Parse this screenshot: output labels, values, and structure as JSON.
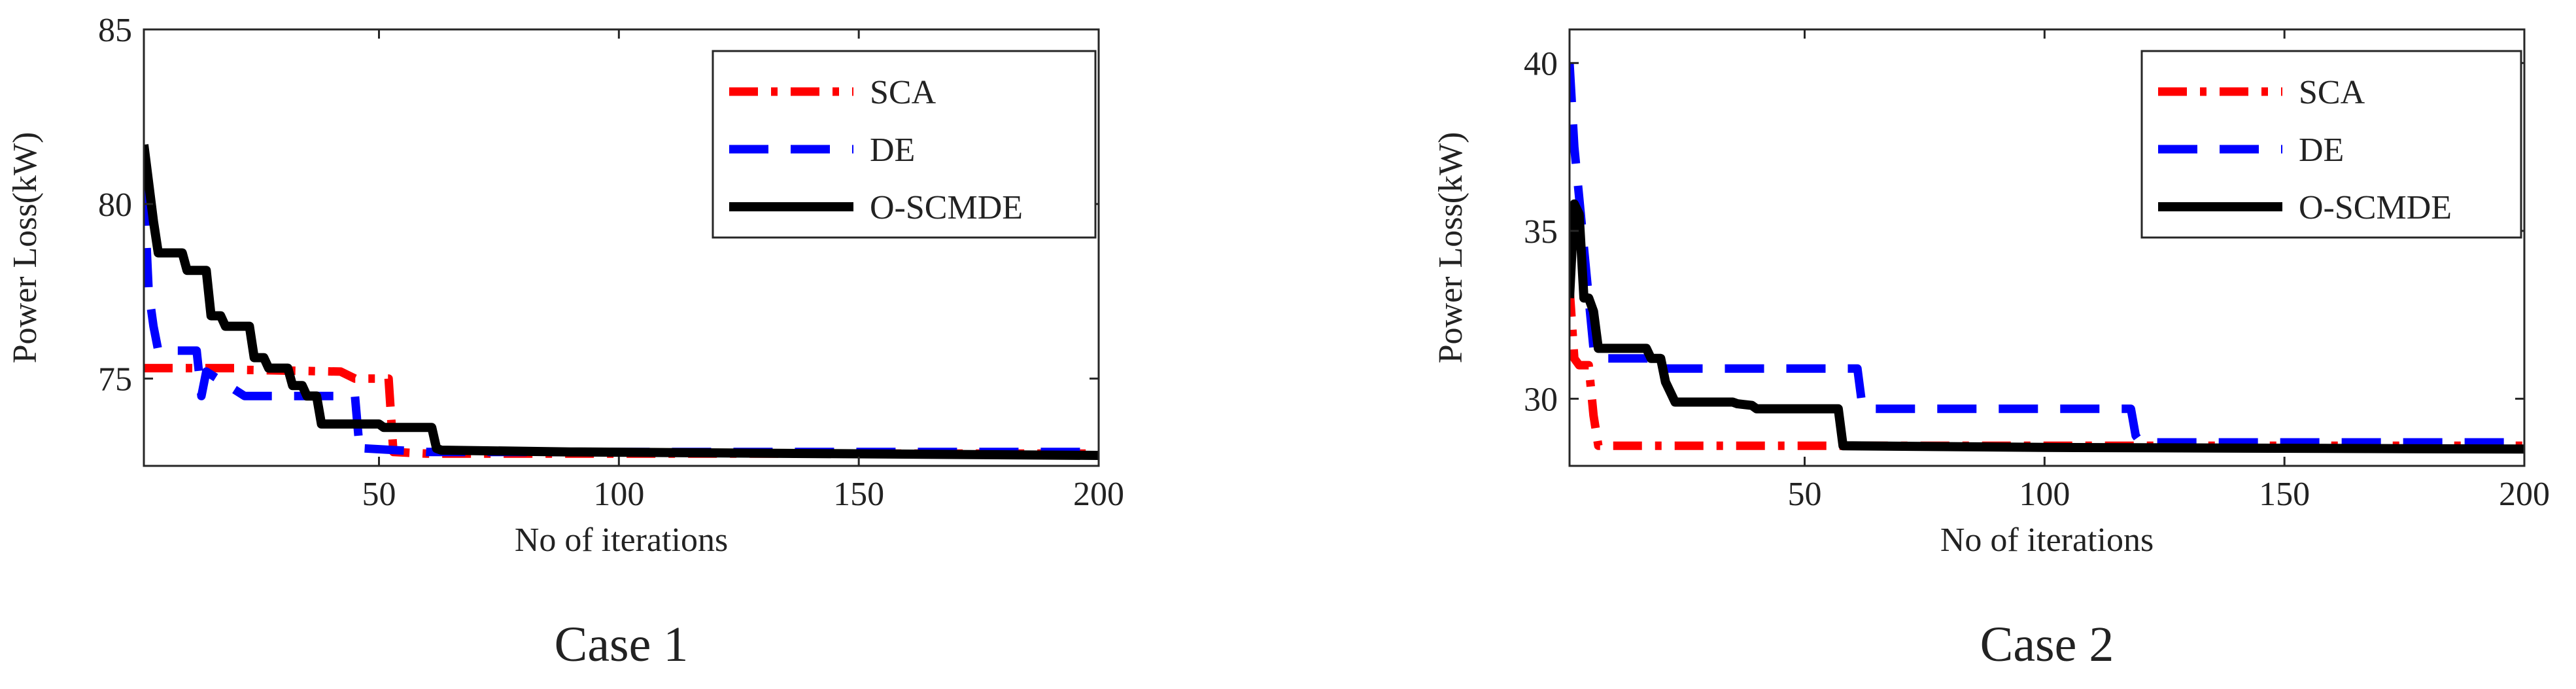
{
  "chart_data": [
    {
      "type": "line",
      "caption": "Case 1",
      "xlabel": "No of iterations",
      "ylabel": "Power Loss(kW)",
      "xlim": [
        1,
        200
      ],
      "ylim": [
        72.5,
        85
      ],
      "xticks": [
        50,
        100,
        150,
        200
      ],
      "yticks": [
        75,
        80,
        85
      ],
      "grid": false,
      "legend_position": "top-right",
      "series": [
        {
          "name": "SCA",
          "color": "#ff0000",
          "style": "dash-dot",
          "x": [
            1,
            20,
            22,
            42,
            45,
            52,
            53,
            60,
            200
          ],
          "y": [
            75.3,
            75.3,
            75.25,
            75.2,
            75.0,
            75.0,
            72.9,
            72.85,
            72.85
          ]
        },
        {
          "name": "DE",
          "color": "#0000ff",
          "style": "dashed",
          "x": [
            1,
            2,
            3,
            4,
            12,
            13,
            14,
            22,
            24,
            45,
            46,
            47,
            60,
            200
          ],
          "y": [
            80.5,
            77.5,
            76.5,
            75.8,
            75.8,
            74.5,
            75.2,
            74.5,
            74.5,
            74.5,
            72.9,
            73.0,
            72.9,
            72.9
          ]
        },
        {
          "name": "O-SCMDE",
          "color": "#000000",
          "style": "solid",
          "x": [
            1,
            3,
            4,
            9,
            10,
            14,
            15,
            17,
            18,
            23,
            24,
            26,
            27,
            31,
            32,
            34,
            35,
            37,
            38,
            50,
            51,
            61,
            62,
            63,
            90,
            200
          ],
          "y": [
            81.7,
            79.5,
            78.6,
            78.6,
            78.1,
            78.1,
            76.8,
            76.8,
            76.5,
            76.5,
            75.6,
            75.6,
            75.3,
            75.3,
            74.8,
            74.8,
            74.5,
            74.5,
            73.7,
            73.7,
            73.6,
            73.6,
            73.0,
            72.95,
            72.9,
            72.8
          ]
        }
      ]
    },
    {
      "type": "line",
      "caption": "Case 2",
      "xlabel": "No of iterations",
      "ylabel": "Power Loss(kW)",
      "xlim": [
        1,
        200
      ],
      "ylim": [
        28,
        41
      ],
      "xticks": [
        50,
        100,
        150,
        200
      ],
      "yticks": [
        30,
        35,
        40
      ],
      "grid": false,
      "legend_position": "top-right",
      "series": [
        {
          "name": "SCA",
          "color": "#ff0000",
          "style": "dash-dot",
          "x": [
            1,
            2,
            3,
            4,
            5,
            6,
            7,
            200
          ],
          "y": [
            33.3,
            31.2,
            31.0,
            31.0,
            31.0,
            29.5,
            28.6,
            28.6
          ]
        },
        {
          "name": "DE",
          "color": "#0000ff",
          "style": "dashed",
          "x": [
            1,
            2,
            3,
            4,
            5,
            6,
            8,
            9,
            20,
            21,
            61,
            62,
            63,
            118,
            119,
            120,
            121,
            200
          ],
          "y": [
            40.0,
            37.5,
            36.0,
            34.5,
            33.0,
            31.5,
            31.5,
            31.2,
            31.2,
            30.9,
            30.9,
            29.8,
            29.7,
            29.7,
            28.9,
            28.7,
            28.7,
            28.7
          ]
        },
        {
          "name": "O-SCMDE",
          "color": "#000000",
          "style": "solid",
          "x": [
            1,
            2,
            3,
            4,
            5,
            6,
            7,
            17,
            18,
            20,
            21,
            22,
            23,
            35,
            36,
            39,
            40,
            57,
            58,
            100,
            200
          ],
          "y": [
            33.0,
            35.8,
            35.5,
            33.0,
            33.0,
            32.6,
            31.5,
            31.5,
            31.2,
            31.2,
            30.5,
            30.2,
            29.9,
            29.9,
            29.85,
            29.8,
            29.7,
            29.7,
            28.6,
            28.55,
            28.5
          ]
        }
      ]
    }
  ]
}
